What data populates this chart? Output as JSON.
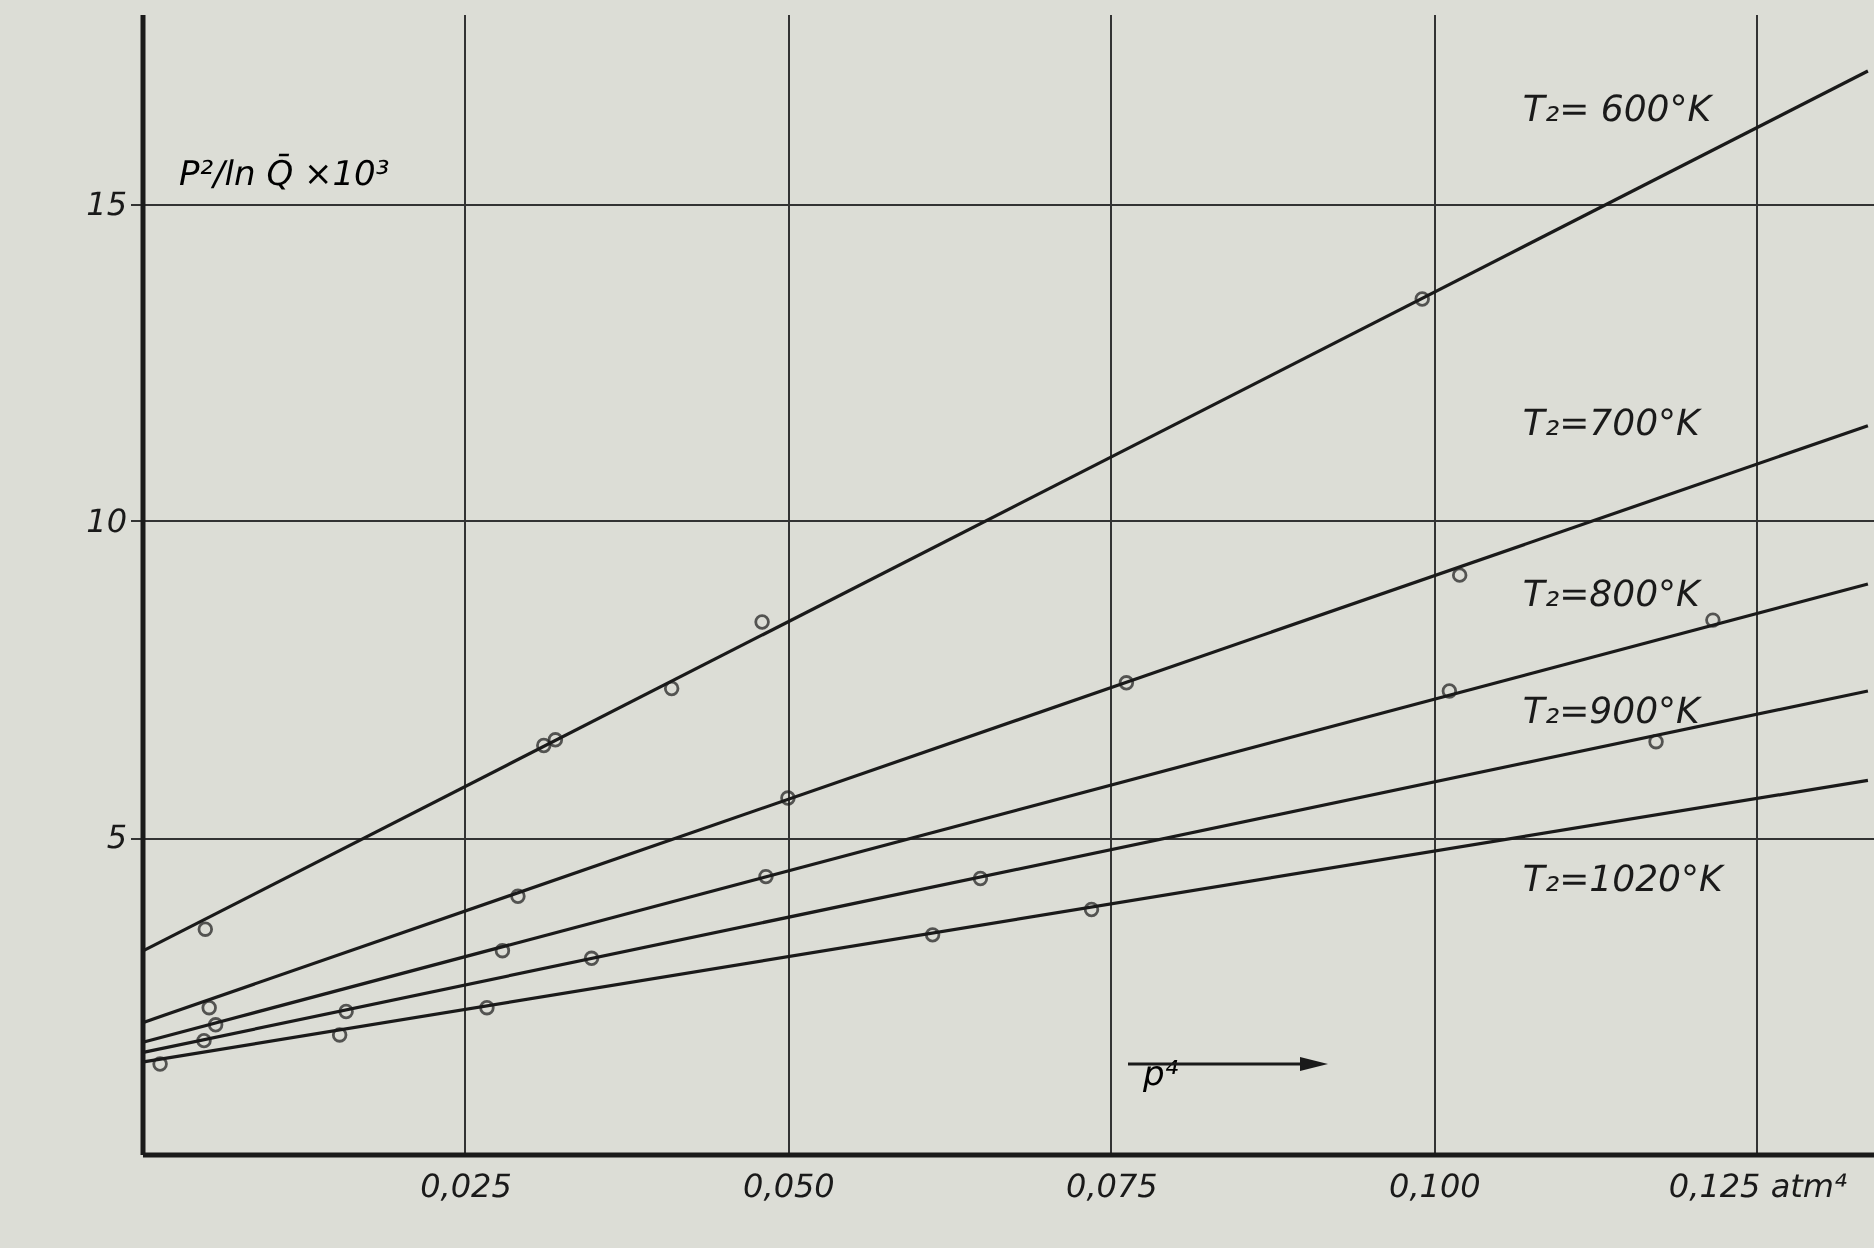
{
  "chart_data": {
    "type": "line",
    "ylabel": "P²/ln Q̄ ×10³",
    "xlabel": "p⁴",
    "xlim": [
      0,
      0.135
    ],
    "ylim": [
      0,
      18
    ],
    "xticks": [
      {
        "value": 0.025,
        "label": "0,025"
      },
      {
        "value": 0.05,
        "label": "0,050"
      },
      {
        "value": 0.075,
        "label": "0,075"
      },
      {
        "value": 0.1,
        "label": "0,100"
      },
      {
        "value": 0.125,
        "label": "0,125 atm⁴"
      }
    ],
    "yticks": [
      5,
      10,
      15
    ],
    "grid": true,
    "series": [
      {
        "name": "T₂= 600°K",
        "color": "#1a1a1a",
        "marker": "none",
        "x": [
          0,
          0.1336
        ],
        "values": [
          3.2,
          17.1
        ]
      },
      {
        "type": "scatter",
        "color": "#1a1a1a",
        "marker": "circle",
        "x": [
          0.0049,
          0.0311,
          0.032,
          0.041,
          0.048,
          0.0991
        ],
        "values": [
          3.55,
          6.45,
          6.54,
          7.35,
          8.4,
          13.5
        ]
      },
      {
        "name": "T₂=700°K",
        "color": "#1a1a1a",
        "marker": "none",
        "x": [
          0,
          0.1336
        ],
        "values": [
          2.07,
          11.5
        ]
      },
      {
        "type": "scatter",
        "color": "#1a1a1a",
        "marker": "circle",
        "x": [
          0.0052,
          0.0291,
          0.05,
          0.0762,
          0.102
        ],
        "values": [
          2.31,
          4.07,
          5.62,
          7.44,
          9.14
        ]
      },
      {
        "name": "T₂=800°K",
        "color": "#1a1a1a",
        "marker": "none",
        "x": [
          0,
          0.1336
        ],
        "values": [
          1.76,
          9.0
        ]
      },
      {
        "type": "scatter",
        "color": "#1a1a1a",
        "marker": "circle",
        "x": [
          0.0057,
          0.0279,
          0.0483,
          0.1012,
          0.1216
        ],
        "values": [
          2.04,
          3.21,
          4.38,
          7.31,
          8.43
        ]
      },
      {
        "name": "T₂=900°K",
        "color": "#1a1a1a",
        "marker": "none",
        "x": [
          0,
          0.1336
        ],
        "values": [
          1.6,
          7.31
        ]
      },
      {
        "type": "scatter",
        "color": "#1a1a1a",
        "marker": "circle",
        "x": [
          0.0048,
          0.0158,
          0.0348,
          0.0649,
          0.1172
        ],
        "values": [
          1.79,
          2.25,
          3.09,
          4.35,
          6.51
        ]
      },
      {
        "name": "T₂=1020°K",
        "color": "#1a1a1a",
        "marker": "none",
        "x": [
          0,
          0.1336
        ],
        "values": [
          1.45,
          5.9
        ]
      },
      {
        "type": "scatter",
        "color": "#1a1a1a",
        "marker": "circle",
        "x": [
          0.0014,
          0.0153,
          0.0267,
          0.0612,
          0.0735
        ],
        "values": [
          1.42,
          1.88,
          2.31,
          3.46,
          3.86
        ]
      }
    ]
  }
}
